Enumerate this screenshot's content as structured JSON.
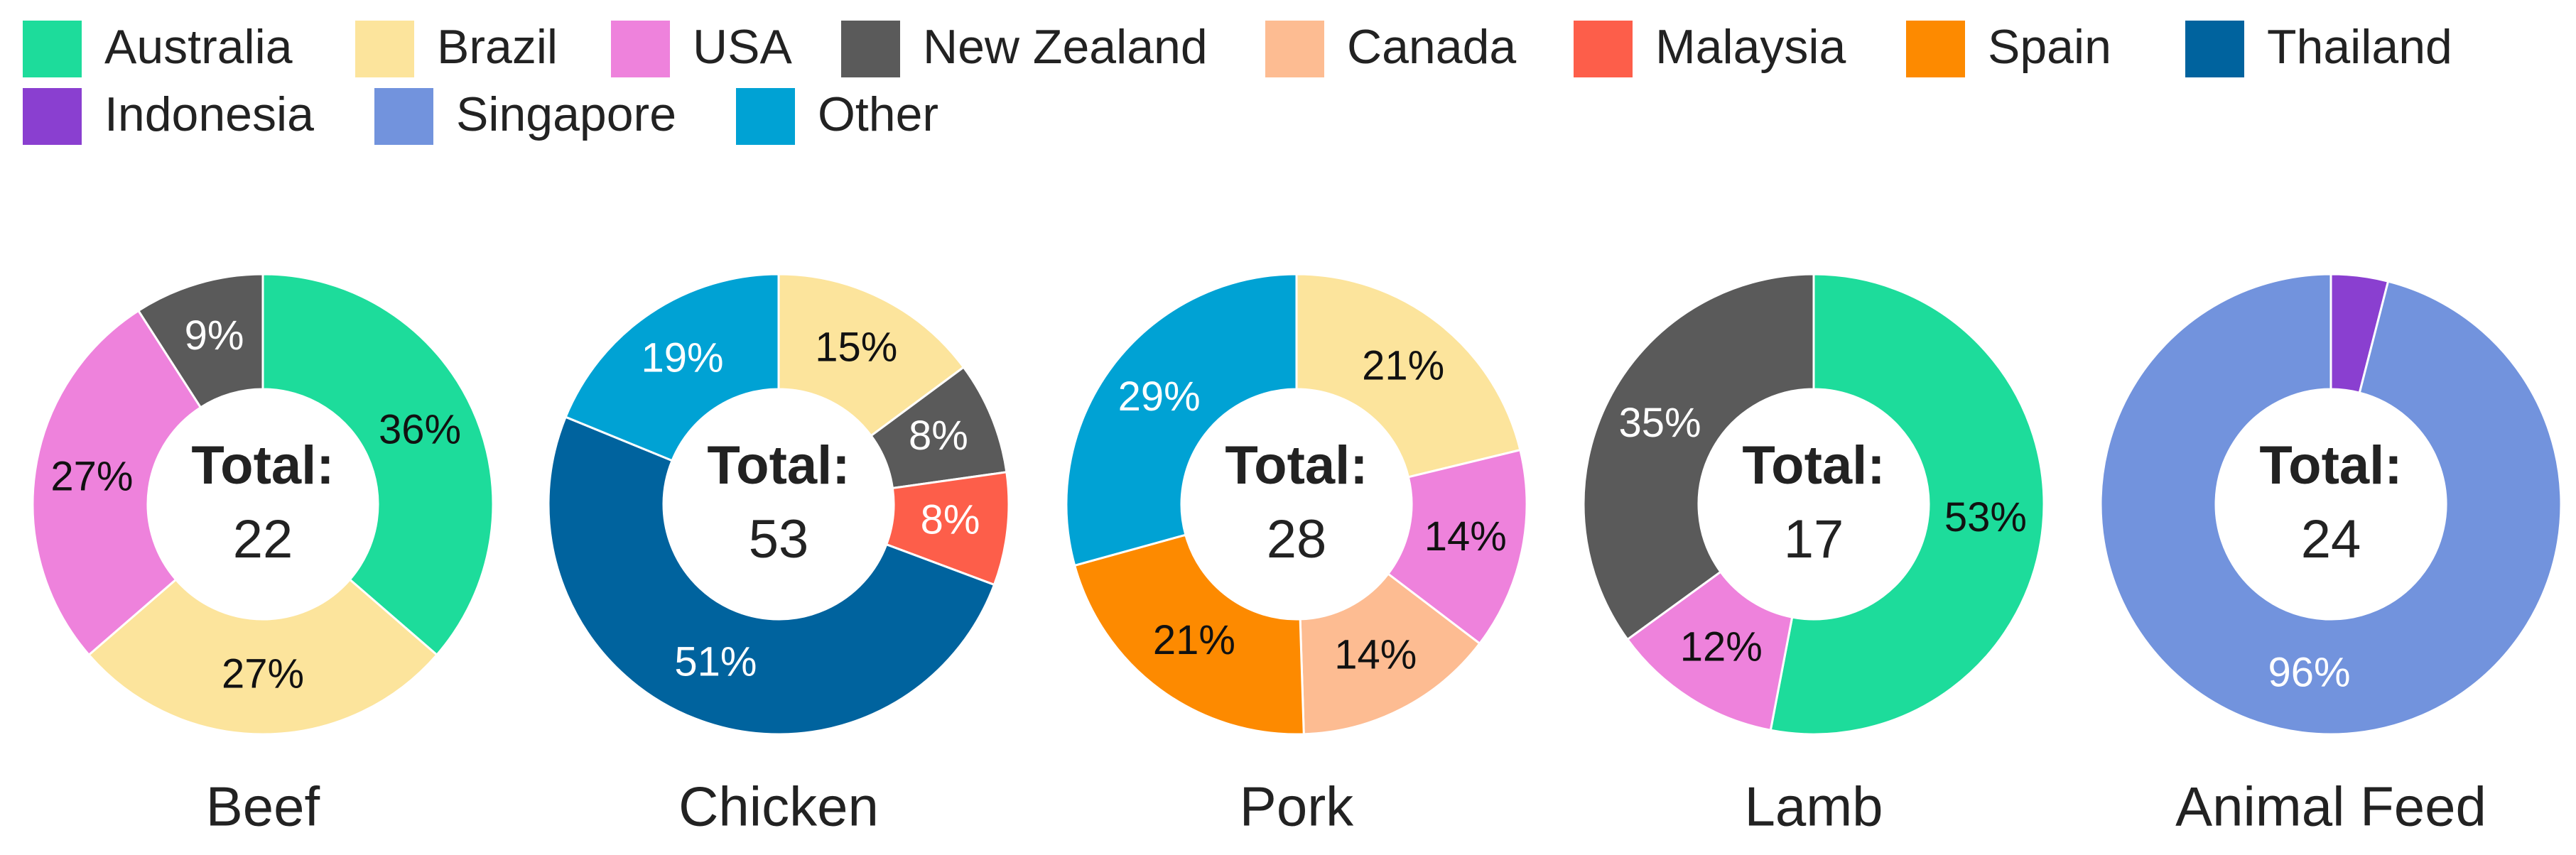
{
  "legend": [
    {
      "name": "Australia",
      "color": "#1ddc9b"
    },
    {
      "name": "Brazil",
      "color": "#fce49c"
    },
    {
      "name": "USA",
      "color": "#ee82dc"
    },
    {
      "name": "New Zealand",
      "color": "#5a5a5a"
    },
    {
      "name": "Canada",
      "color": "#fdbc92"
    },
    {
      "name": "Malaysia",
      "color": "#fd5e4a"
    },
    {
      "name": "Spain",
      "color": "#fd8a00"
    },
    {
      "name": "Thailand",
      "color": "#00639e"
    },
    {
      "name": "Indonesia",
      "color": "#8a3fd0"
    },
    {
      "name": "Singapore",
      "color": "#7293dd"
    },
    {
      "name": "Other",
      "color": "#00a2d4"
    }
  ],
  "chart_data": [
    {
      "type": "donut",
      "title": "Beef",
      "center_label": "Total:",
      "total": 22,
      "categories": [
        "Australia",
        "Brazil",
        "USA",
        "New Zealand"
      ],
      "values": [
        36,
        27,
        27,
        9
      ],
      "value_labels": [
        "36%",
        "27%",
        "27%",
        "9%"
      ]
    },
    {
      "type": "donut",
      "title": "Chicken",
      "center_label": "Total:",
      "total": 53,
      "categories": [
        "Brazil",
        "New Zealand",
        "Malaysia",
        "Thailand",
        "Other"
      ],
      "values": [
        15,
        8,
        8,
        51,
        19
      ],
      "value_labels": [
        "15%",
        "8%",
        "8%",
        "51%",
        "19%"
      ]
    },
    {
      "type": "donut",
      "title": "Pork",
      "center_label": "Total:",
      "total": 28,
      "categories": [
        "Brazil",
        "USA",
        "Canada",
        "Spain",
        "Other"
      ],
      "values": [
        21,
        14,
        14,
        21,
        29
      ],
      "value_labels": [
        "21%",
        "14%",
        "14%",
        "21%",
        "29%"
      ]
    },
    {
      "type": "donut",
      "title": "Lamb",
      "center_label": "Total:",
      "total": 17,
      "categories": [
        "Australia",
        "USA",
        "New Zealand"
      ],
      "values": [
        53,
        12,
        35
      ],
      "value_labels": [
        "53%",
        "12%",
        "35%"
      ]
    },
    {
      "type": "donut",
      "title": "Animal Feed",
      "center_label": "Total:",
      "total": 24,
      "categories": [
        "Indonesia",
        "Singapore"
      ],
      "values": [
        4,
        96
      ],
      "value_labels": [
        null,
        "96%"
      ]
    }
  ]
}
